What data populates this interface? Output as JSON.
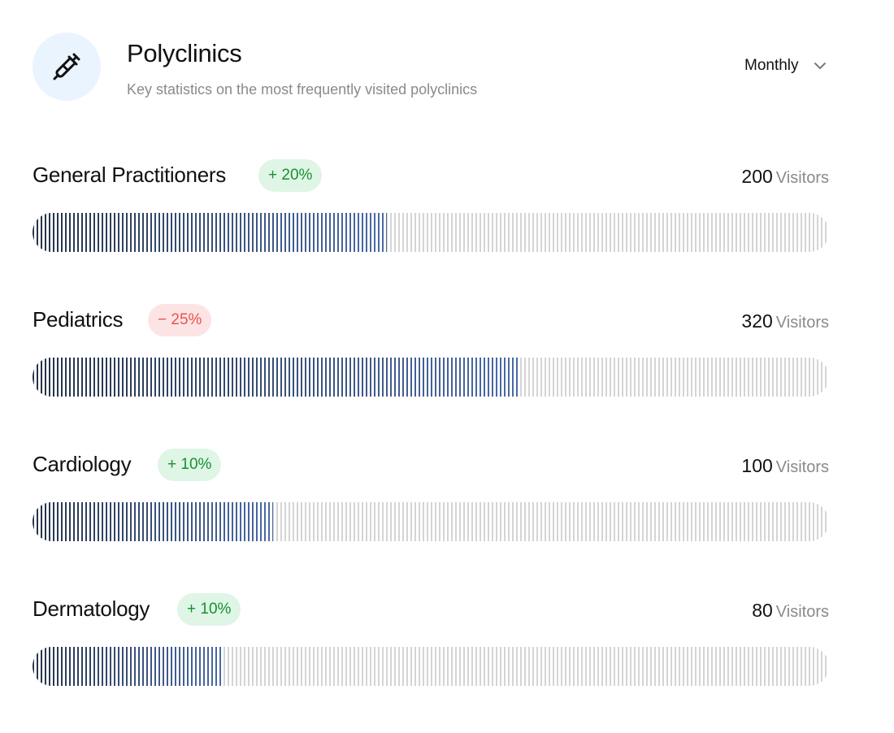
{
  "header": {
    "title": "Polyclinics",
    "subtitle": "Key statistics on the most frequently visited polyclinics",
    "icon": "syringe-icon",
    "period": {
      "selected": "Monthly",
      "icon": "chevron-down-icon"
    }
  },
  "clinics": [
    {
      "name": "General Practitioners",
      "change": "+ 20%",
      "trend": "up",
      "visitors": "200",
      "visitors_label": "Visitors",
      "fill_fraction": 0.445
    },
    {
      "name": "Pediatrics",
      "change": "− 25%",
      "trend": "down",
      "visitors": "320",
      "visitors_label": "Visitors",
      "fill_fraction": 0.61
    },
    {
      "name": "Cardiology",
      "change": "+ 10%",
      "trend": "up",
      "visitors": "100",
      "visitors_label": "Visitors",
      "fill_fraction": 0.302
    },
    {
      "name": "Dermatology",
      "change": "+ 10%",
      "trend": "up",
      "visitors": "80",
      "visitors_label": "Visitors",
      "fill_fraction": 0.24
    }
  ],
  "colors": {
    "accent_dark": "#243247",
    "accent_light": "#4a6aa8",
    "up_bg": "#dff5e6",
    "up_text": "#17912f",
    "down_bg": "#fde4e4",
    "down_text": "#e9524f",
    "icon_bg": "#eaf4ff"
  }
}
